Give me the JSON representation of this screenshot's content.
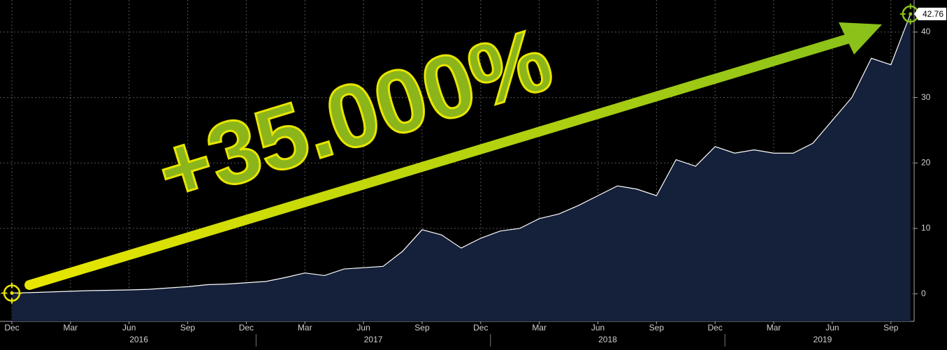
{
  "chart_data": {
    "type": "area",
    "annotation": "+35.000%",
    "categories": [
      "Dec",
      null,
      null,
      "Mar",
      null,
      null,
      "Jun",
      null,
      null,
      "Sep",
      null,
      null,
      "Dec",
      null,
      null,
      "Mar",
      null,
      null,
      "Jun",
      null,
      null,
      "Sep",
      null,
      null,
      "Dec",
      null,
      null,
      "Mar",
      null,
      null,
      "Jun",
      null,
      null,
      "Sep",
      null,
      null,
      "Dec",
      null,
      null,
      "Mar",
      null,
      null,
      "Jun",
      null,
      null,
      "Sep",
      null
    ],
    "years": [
      "2016",
      "2017",
      "2018",
      "2019"
    ],
    "values": [
      0.12,
      0.2,
      0.3,
      0.4,
      0.5,
      0.55,
      0.6,
      0.7,
      0.9,
      1.1,
      1.4,
      1.5,
      1.7,
      1.9,
      2.5,
      3.2,
      2.8,
      3.8,
      4.0,
      4.2,
      6.5,
      9.8,
      9.0,
      7.0,
      8.5,
      9.6,
      10.0,
      11.5,
      12.2,
      13.5,
      15.0,
      16.5,
      16.0,
      15.0,
      20.5,
      19.5,
      22.5,
      21.5,
      22.0,
      21.5,
      21.5,
      23.0,
      26.5,
      30.0,
      36.0,
      35.0,
      42.76
    ],
    "color": "#15203a",
    "line_color": "#ffffff",
    "ylim": [
      -4.2,
      44.9
    ],
    "yticks": [
      0,
      10,
      20,
      30,
      40
    ],
    "grid": true
  }
}
